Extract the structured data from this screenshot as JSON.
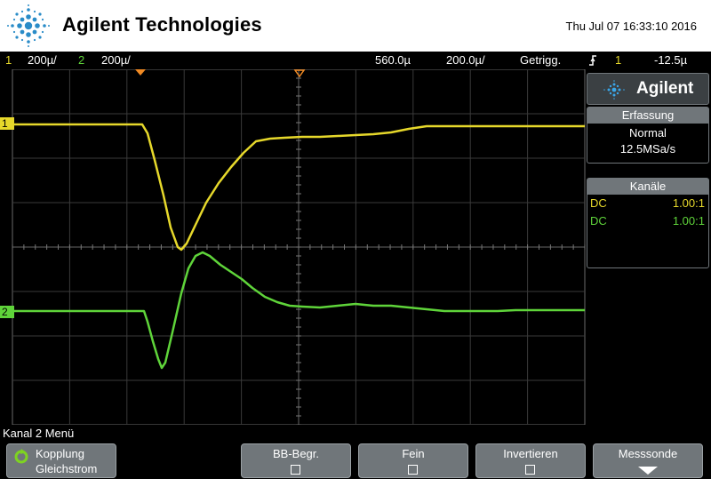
{
  "header": {
    "brand": "Agilent Technologies",
    "datetime": "Thu Jul 07 16:33:10 2016"
  },
  "status_bar": {
    "ch1_num": "1",
    "ch1_scale": "200µ/",
    "ch2_num": "2",
    "ch2_scale": "200µ/",
    "delay": "560.0µ",
    "timebase": "200.0µ/",
    "trigger_mode": "Getrigg.",
    "trigger_source": "1",
    "trigger_level": "-12.5µ"
  },
  "screen": {
    "ch1_marker": "1",
    "ch2_marker": "2"
  },
  "panel": {
    "logo_text": "Agilent",
    "acquisition": {
      "title": "Erfassung",
      "mode": "Normal",
      "rate": "12.5MSa/s"
    },
    "channels": {
      "title": "Kanäle",
      "rows": [
        {
          "coupling": "DC",
          "probe": "1.00:1"
        },
        {
          "coupling": "DC",
          "probe": "1.00:1"
        }
      ]
    }
  },
  "menu": {
    "title": "Kanal 2 Menü",
    "softkeys": {
      "coupling_label": "Kopplung",
      "coupling_value": "Gleichstrom",
      "bw_limit": "BB-Begr.",
      "fine": "Fein",
      "invert": "Invertieren",
      "probe": "Messsonde"
    }
  },
  "colors": {
    "ch1": "#e6d82b",
    "ch2": "#5fd43a",
    "accent": "#f08a24",
    "panel_header": "#70767a"
  }
}
